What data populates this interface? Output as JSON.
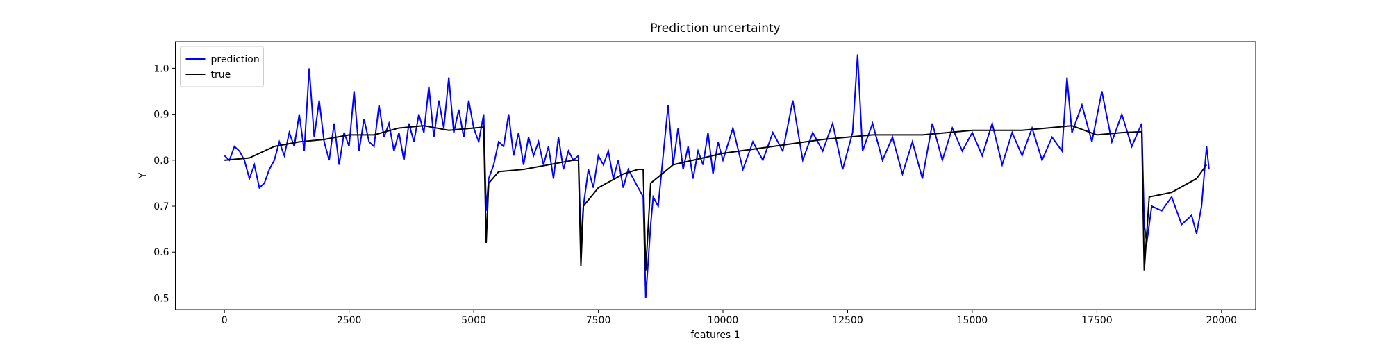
{
  "chart_data": {
    "type": "line",
    "title": "Prediction uncertainty",
    "xlabel": "features 1",
    "ylabel": "Y",
    "xlim": [
      -985,
      20685
    ],
    "ylim": [
      0.475,
      1.058
    ],
    "xticks": [
      0,
      2500,
      5000,
      7500,
      10000,
      12500,
      15000,
      17500,
      20000
    ],
    "yticks": [
      0.5,
      0.6,
      0.7,
      0.8,
      0.9,
      {
        "value": 1,
        "label": "1.0"
      }
    ],
    "legend": "upper left",
    "series": [
      {
        "name": "prediction",
        "color": "#0000ff",
        "x": [
          0,
          100,
          200,
          300,
          400,
          500,
          600,
          700,
          800,
          900,
          1000,
          1100,
          1200,
          1300,
          1400,
          1500,
          1600,
          1700,
          1800,
          1900,
          2000,
          2100,
          2200,
          2300,
          2400,
          2500,
          2600,
          2700,
          2800,
          2900,
          3000,
          3100,
          3200,
          3300,
          3400,
          3500,
          3600,
          3700,
          3800,
          3900,
          4000,
          4100,
          4200,
          4300,
          4400,
          4500,
          4600,
          4700,
          4800,
          4900,
          5000,
          5100,
          5200,
          5250,
          5300,
          5400,
          5500,
          5600,
          5700,
          5800,
          5900,
          6000,
          6100,
          6200,
          6300,
          6400,
          6500,
          6600,
          6700,
          6800,
          6900,
          7000,
          7100,
          7150,
          7200,
          7300,
          7400,
          7500,
          7600,
          7700,
          7800,
          7900,
          8000,
          8100,
          8200,
          8300,
          8400,
          8450,
          8500,
          8550,
          8600,
          8700,
          8800,
          8900,
          9000,
          9100,
          9200,
          9300,
          9400,
          9500,
          9600,
          9700,
          9800,
          9900,
          10000,
          10200,
          10400,
          10600,
          10800,
          11000,
          11200,
          11400,
          11600,
          11800,
          12000,
          12200,
          12400,
          12600,
          12700,
          12800,
          13000,
          13200,
          13400,
          13600,
          13800,
          14000,
          14200,
          14400,
          14600,
          14800,
          15000,
          15200,
          15400,
          15600,
          15800,
          16000,
          16200,
          16400,
          16600,
          16800,
          16900,
          17000,
          17200,
          17400,
          17600,
          17800,
          18000,
          18200,
          18400,
          18450,
          18500,
          18600,
          18800,
          19000,
          19200,
          19400,
          19500,
          19600,
          19700,
          19750
        ],
        "values": [
          0.81,
          0.8,
          0.83,
          0.82,
          0.8,
          0.76,
          0.79,
          0.74,
          0.75,
          0.78,
          0.8,
          0.84,
          0.81,
          0.86,
          0.83,
          0.9,
          0.82,
          1.0,
          0.85,
          0.93,
          0.84,
          0.8,
          0.88,
          0.79,
          0.86,
          0.83,
          0.95,
          0.82,
          0.89,
          0.84,
          0.83,
          0.92,
          0.85,
          0.88,
          0.82,
          0.86,
          0.8,
          0.88,
          0.84,
          0.9,
          0.86,
          0.96,
          0.85,
          0.93,
          0.87,
          0.98,
          0.86,
          0.91,
          0.85,
          0.93,
          0.87,
          0.84,
          0.9,
          0.69,
          0.76,
          0.79,
          0.84,
          0.83,
          0.9,
          0.81,
          0.86,
          0.79,
          0.85,
          0.81,
          0.84,
          0.79,
          0.83,
          0.76,
          0.85,
          0.78,
          0.82,
          0.8,
          0.81,
          0.62,
          0.7,
          0.78,
          0.74,
          0.81,
          0.79,
          0.82,
          0.76,
          0.8,
          0.74,
          0.78,
          0.76,
          0.74,
          0.72,
          0.5,
          0.58,
          0.66,
          0.72,
          0.7,
          0.81,
          0.92,
          0.79,
          0.87,
          0.78,
          0.83,
          0.76,
          0.82,
          0.79,
          0.86,
          0.77,
          0.84,
          0.8,
          0.87,
          0.78,
          0.84,
          0.8,
          0.86,
          0.82,
          0.93,
          0.8,
          0.86,
          0.82,
          0.88,
          0.78,
          0.86,
          1.03,
          0.82,
          0.88,
          0.8,
          0.85,
          0.77,
          0.84,
          0.76,
          0.88,
          0.8,
          0.87,
          0.82,
          0.86,
          0.81,
          0.88,
          0.79,
          0.86,
          0.81,
          0.87,
          0.8,
          0.85,
          0.82,
          0.98,
          0.86,
          0.92,
          0.84,
          0.95,
          0.84,
          0.9,
          0.83,
          0.88,
          0.66,
          0.62,
          0.7,
          0.69,
          0.72,
          0.66,
          0.68,
          0.64,
          0.7,
          0.83,
          0.78
        ]
      },
      {
        "name": "true",
        "color": "#000000",
        "x": [
          0,
          500,
          1000,
          1500,
          2000,
          2500,
          3000,
          3500,
          4000,
          4500,
          5000,
          5200,
          5250,
          5300,
          5500,
          6000,
          6500,
          7000,
          7100,
          7150,
          7200,
          7500,
          8000,
          8300,
          8400,
          8450,
          8550,
          9000,
          10000,
          11000,
          12000,
          13000,
          14000,
          15000,
          16000,
          16500,
          17000,
          17500,
          18000,
          18400,
          18450,
          18550,
          19000,
          19500,
          19700
        ],
        "values": [
          0.8,
          0.805,
          0.83,
          0.84,
          0.845,
          0.855,
          0.855,
          0.87,
          0.875,
          0.865,
          0.87,
          0.872,
          0.62,
          0.75,
          0.775,
          0.78,
          0.79,
          0.8,
          0.8,
          0.57,
          0.7,
          0.74,
          0.77,
          0.78,
          0.78,
          0.56,
          0.75,
          0.79,
          0.815,
          0.83,
          0.845,
          0.855,
          0.855,
          0.865,
          0.865,
          0.87,
          0.875,
          0.855,
          0.86,
          0.862,
          0.56,
          0.72,
          0.73,
          0.76,
          0.79
        ]
      }
    ]
  }
}
